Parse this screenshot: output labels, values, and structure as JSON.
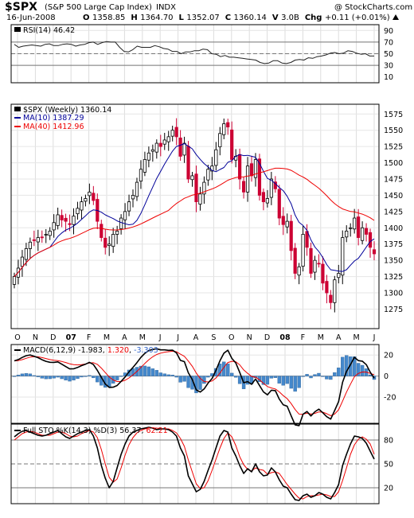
{
  "header": {
    "symbol": "$SPX",
    "name": "(S&P 500 Large Cap Index)",
    "exchange": "INDX",
    "credit": "@ StockCharts.com",
    "date": "16-Jun-2008",
    "ohlc": [
      {
        "label": "O",
        "value": "1358.85"
      },
      {
        "label": "H",
        "value": "1364.70"
      },
      {
        "label": "L",
        "value": "1352.07"
      },
      {
        "label": "C",
        "value": "1360.14"
      },
      {
        "label": "V",
        "value": "3.0B"
      },
      {
        "label": "Chg",
        "value": "+0.11 (+0.01%)"
      }
    ],
    "chg_arrow": "up-triangle"
  },
  "colors": {
    "up_candle": "#ffffff",
    "down_candle": "#cc0033",
    "ma10": "#000099",
    "ma40": "#ee0000",
    "macd_hist": "#4488cc",
    "macd_signal": "#ee0000",
    "neg_label": "#3366cc"
  },
  "x_axis": {
    "labels": [
      "O",
      "N",
      "D",
      "07",
      "F",
      "M",
      "A",
      "M",
      "J",
      "J",
      "A",
      "S",
      "O",
      "N",
      "D",
      "08",
      "F",
      "M",
      "A",
      "M",
      "J"
    ]
  },
  "chart_data": [
    {
      "type": "line",
      "panel": "rsi",
      "label": "RSI(14) 46.42",
      "y_ticks": [
        90,
        70,
        50,
        30,
        10
      ],
      "ylim": [
        0,
        100
      ],
      "reference_lines": [
        70,
        30
      ],
      "series": [
        {
          "values": [
            66,
            61,
            63,
            64,
            65,
            64,
            63,
            66,
            67,
            64,
            64,
            66,
            67,
            66,
            63,
            65,
            66,
            69,
            70,
            66,
            69,
            71,
            70,
            70,
            61,
            54,
            53,
            57,
            63,
            61,
            61,
            61,
            64,
            62,
            59,
            58,
            54,
            54,
            50,
            53,
            53,
            55,
            55,
            58,
            57,
            50,
            49,
            45,
            47,
            44,
            44,
            43,
            42,
            41,
            40,
            39,
            35,
            33,
            34,
            38,
            38,
            34,
            33,
            35,
            39,
            40,
            39,
            43,
            42,
            45,
            46,
            48,
            51,
            52,
            50,
            51,
            55,
            54,
            51,
            49,
            50,
            46,
            46
          ]
        }
      ]
    },
    {
      "type": "candlestick",
      "panel": "price",
      "label": "$SPX (Weekly) 1360.14",
      "ma10_label": "MA(10) 1387.29",
      "ma40_label": "MA(40) 1412.96",
      "y_ticks": [
        1575,
        1550,
        1525,
        1500,
        1475,
        1450,
        1425,
        1400,
        1375,
        1350,
        1325,
        1300,
        1275
      ],
      "ylim": [
        1245,
        1590
      ],
      "close": [
        1325,
        1338,
        1355,
        1368,
        1378,
        1381,
        1385,
        1385,
        1390,
        1395,
        1408,
        1420,
        1412,
        1410,
        1405,
        1418,
        1430,
        1440,
        1445,
        1455,
        1442,
        1410,
        1385,
        1370,
        1375,
        1390,
        1395,
        1415,
        1425,
        1440,
        1450,
        1470,
        1490,
        1505,
        1515,
        1520,
        1530,
        1525,
        1535,
        1540,
        1550,
        1540,
        1510,
        1530,
        1475,
        1480,
        1440,
        1452,
        1470,
        1490,
        1495,
        1520,
        1545,
        1560,
        1555,
        1505,
        1510,
        1475,
        1455,
        1495,
        1480,
        1505,
        1450,
        1440,
        1445,
        1475,
        1460,
        1415,
        1405,
        1410,
        1365,
        1330,
        1340,
        1390,
        1370,
        1330,
        1350,
        1345,
        1315,
        1300,
        1285,
        1320,
        1330,
        1385,
        1395,
        1400,
        1415,
        1385,
        1400,
        1390,
        1370,
        1360
      ]
    },
    {
      "type": "line",
      "panel": "macd",
      "label": "MACD(6,12,9)",
      "values_text": [
        "-1.983",
        "1.320",
        "-3.303"
      ],
      "y_ticks": [
        20,
        0,
        -20
      ],
      "ylim": [
        -45,
        30
      ],
      "series": [
        {
          "values": [
            14.5,
            15.7,
            17.7,
            19.4,
            20.1,
            18.9,
            17.5,
            15.5,
            14.0,
            13.1,
            13.0,
            13.5,
            11.3,
            9.0,
            6.8,
            6.9,
            8.2,
            9.9,
            11.3,
            13.0,
            11.0,
            5.4,
            -1.2,
            -7.5,
            -10.8,
            -10.6,
            -9.0,
            -5.1,
            -0.9,
            4.0,
            8.2,
            12.8,
            17.7,
            21.6,
            24.3,
            25.3,
            26.0,
            24.9,
            24.9,
            24.5,
            24.6,
            22.1,
            14.9,
            13.7,
            3.2,
            -3.3,
            -13.2,
            -15.2,
            -12.3,
            -6.7,
            -2.3,
            5.5,
            14.6,
            21.8,
            24.6,
            16.8,
            12.4,
            3.4,
            -6.4,
            -5.3,
            -7.9,
            -2.8,
            -9.1,
            -15.1,
            -17.9,
            -13.5,
            -13.9,
            -22.0,
            -27.4,
            -28.7,
            -37.9,
            -46.5,
            -47.3,
            -36.4,
            -33.7,
            -38.0,
            -34.0,
            -31.5,
            -34.9,
            -38.7,
            -41.0,
            -32.9,
            -24.3,
            -5.9,
            4.3,
            10.8,
            17.9,
            14.7,
            14.2,
            10.8,
            3.7,
            -2.0
          ]
        },
        {
          "values": [
            14.5,
            14.7,
            15.6,
            16.9,
            18.0,
            18.4,
            18.3,
            17.6,
            16.7,
            15.7,
            15.0,
            14.6,
            13.9,
            12.9,
            11.7,
            10.8,
            10.6,
            10.9,
            11.5,
            12.4,
            12.7,
            11.1,
            7.6,
            3.3,
            -0.8,
            -3.7,
            -5.2,
            -5.2,
            -4.0,
            -1.8,
            1.1,
            4.4,
            8.2,
            12.0,
            15.5,
            18.3,
            20.5,
            21.8,
            22.7,
            23.2,
            23.6,
            23.2,
            20.8,
            18.8,
            14.3,
            9.3,
            2.9,
            -2.3,
            -5.2,
            -5.6,
            -4.7,
            -1.8,
            2.9,
            8.3,
            12.9,
            14.0,
            13.6,
            10.7,
            5.8,
            2.6,
            -0.4,
            -1.1,
            -3.6,
            -6.9,
            -10.0,
            -11.4,
            -12.3,
            -15.1,
            -18.6,
            -21.5,
            -26.2,
            -31.9,
            -36.2,
            -36.3,
            -35.4,
            -36.2,
            -35.5,
            -34.2,
            -34.4,
            -35.8,
            -37.7,
            -36.2,
            -32.1,
            -23.9,
            -15.3,
            -7.7,
            -0.6,
            2.5,
            3.9,
            3.8,
            2.5,
            1.3
          ]
        }
      ]
    },
    {
      "type": "line",
      "panel": "stochastic",
      "label": "Full STO %K(14,3) %D(3)",
      "values_text": [
        "56.37",
        "62.21"
      ],
      "y_ticks": [
        80,
        50,
        20
      ],
      "ylim": [
        0,
        100
      ],
      "reference_lines": [
        80,
        20
      ],
      "series": [
        {
          "values": [
            84,
            88,
            91,
            92,
            90,
            88,
            86,
            85,
            86,
            88,
            90,
            92,
            88,
            84,
            82,
            85,
            88,
            90,
            92,
            93,
            85,
            70,
            48,
            32,
            20,
            28,
            45,
            62,
            75,
            85,
            90,
            92,
            94,
            95,
            96,
            95,
            93,
            94,
            94,
            93,
            90,
            85,
            70,
            60,
            35,
            25,
            15,
            18,
            28,
            42,
            55,
            70,
            85,
            92,
            90,
            70,
            60,
            48,
            38,
            44,
            40,
            50,
            40,
            35,
            36,
            45,
            40,
            30,
            22,
            20,
            12,
            5,
            4,
            10,
            12,
            8,
            10,
            14,
            12,
            8,
            6,
            14,
            24,
            48,
            62,
            75,
            85,
            84,
            82,
            76,
            66,
            56
          ]
        },
        {
          "values": [
            80,
            84,
            88,
            90,
            91,
            90,
            88,
            86,
            86,
            86,
            88,
            90,
            90,
            88,
            85,
            84,
            85,
            88,
            90,
            92,
            90,
            83,
            68,
            50,
            33,
            27,
            31,
            45,
            61,
            74,
            83,
            89,
            92,
            94,
            95,
            95,
            95,
            94,
            94,
            94,
            92,
            89,
            82,
            72,
            55,
            40,
            25,
            19,
            20,
            29,
            42,
            56,
            70,
            82,
            89,
            84,
            73,
            59,
            49,
            43,
            41,
            45,
            43,
            42,
            37,
            39,
            40,
            38,
            31,
            24,
            18,
            12,
            7,
            6,
            9,
            10,
            10,
            11,
            12,
            11,
            9,
            9,
            15,
            29,
            45,
            62,
            74,
            81,
            84,
            81,
            75,
            62
          ]
        }
      ]
    }
  ]
}
